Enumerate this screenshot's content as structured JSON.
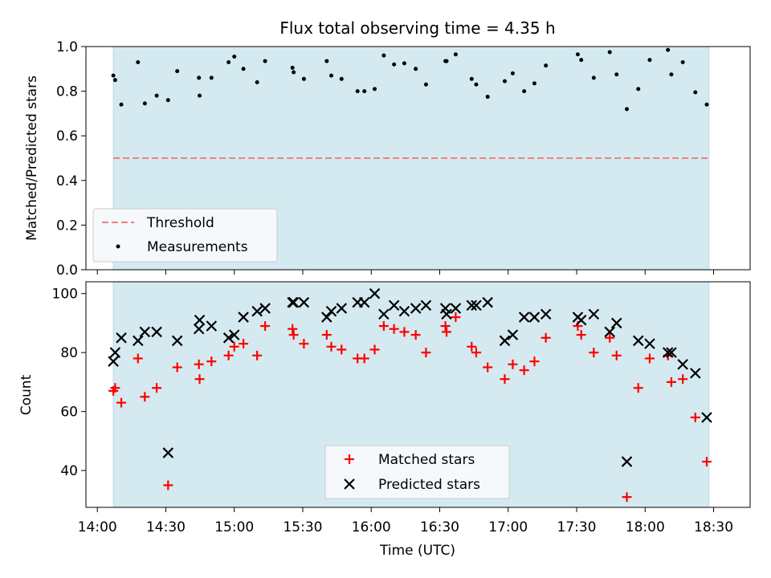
{
  "chart_data": {
    "title": "Flux total observing time = 4.35 h",
    "xlabel": "Time (UTC)",
    "x_tick_labels": [
      "14:00",
      "14:30",
      "15:00",
      "15:30",
      "16:00",
      "16:30",
      "17:00",
      "17:30",
      "18:00",
      "18:30"
    ],
    "x_tick_minutes": [
      840,
      870,
      900,
      930,
      960,
      990,
      1020,
      1050,
      1080,
      1110
    ],
    "xlim_minutes": [
      835,
      1126
    ],
    "observing_window_minutes": [
      847.0,
      1108.0
    ],
    "shade_color": "#d4eaf0",
    "panels": [
      {
        "type": "scatter",
        "ylabel": "Matched/Predicted stars",
        "ylim": [
          0,
          1.0
        ],
        "y_ticks": [
          "0.0",
          "0.2",
          "0.4",
          "0.6",
          "0.8",
          "1.0"
        ],
        "legend_position": "lower-left",
        "threshold": {
          "name": "Threshold",
          "value": 0.5,
          "color": "#f08080"
        },
        "series": [
          {
            "name": "Measurements",
            "color": "#000000",
            "marker": "dot",
            "points": [
              [
                847.0,
                0.87
              ],
              [
                847.8,
                0.85
              ],
              [
                850.5,
                0.74
              ],
              [
                857.8,
                0.93
              ],
              [
                860.8,
                0.745
              ],
              [
                866.0,
                0.78
              ],
              [
                871.0,
                0.76
              ],
              [
                875.0,
                0.89
              ],
              [
                884.5,
                0.86
              ],
              [
                884.8,
                0.78
              ],
              [
                890.0,
                0.86
              ],
              [
                897.5,
                0.93
              ],
              [
                900.0,
                0.955
              ],
              [
                904.0,
                0.9
              ],
              [
                910.0,
                0.84
              ],
              [
                913.5,
                0.935
              ],
              [
                925.5,
                0.905
              ],
              [
                926.0,
                0.885
              ],
              [
                930.5,
                0.855
              ],
              [
                940.5,
                0.935
              ],
              [
                942.5,
                0.87
              ],
              [
                947.0,
                0.855
              ],
              [
                954.0,
                0.8
              ],
              [
                957.0,
                0.8
              ],
              [
                961.5,
                0.81
              ],
              [
                965.5,
                0.96
              ],
              [
                970.0,
                0.92
              ],
              [
                974.5,
                0.925
              ],
              [
                979.5,
                0.9
              ],
              [
                984.0,
                0.83
              ],
              [
                992.5,
                0.935
              ],
              [
                993.0,
                0.935
              ],
              [
                997.0,
                0.965
              ],
              [
                1004.0,
                0.855
              ],
              [
                1006.0,
                0.83
              ],
              [
                1011.0,
                0.775
              ],
              [
                1018.5,
                0.845
              ],
              [
                1022.0,
                0.88
              ],
              [
                1027.0,
                0.8
              ],
              [
                1031.5,
                0.835
              ],
              [
                1036.5,
                0.915
              ],
              [
                1050.5,
                0.965
              ],
              [
                1052.0,
                0.94
              ],
              [
                1057.5,
                0.86
              ],
              [
                1064.5,
                0.975
              ],
              [
                1067.5,
                0.875
              ],
              [
                1072.0,
                0.72
              ],
              [
                1077.0,
                0.81
              ],
              [
                1082.0,
                0.94
              ],
              [
                1090.0,
                0.985
              ],
              [
                1091.5,
                0.875
              ],
              [
                1096.5,
                0.93
              ],
              [
                1102.0,
                0.795
              ],
              [
                1107.0,
                0.74
              ]
            ]
          }
        ]
      },
      {
        "type": "scatter",
        "ylabel": "Count",
        "ylim": [
          27.5,
          104
        ],
        "y_ticks": [
          "40",
          "60",
          "80",
          "100"
        ],
        "y_tick_values": [
          40,
          60,
          80,
          100
        ],
        "legend_position": "lower-center",
        "series": [
          {
            "name": "Matched stars",
            "color": "#ff0000",
            "marker": "plus",
            "points": [
              [
                847.0,
                67
              ],
              [
                847.8,
                68
              ],
              [
                850.5,
                63
              ],
              [
                857.8,
                78
              ],
              [
                860.8,
                65
              ],
              [
                866.0,
                68
              ],
              [
                871.0,
                35
              ],
              [
                875.0,
                75
              ],
              [
                884.5,
                76
              ],
              [
                884.8,
                71
              ],
              [
                890.0,
                77
              ],
              [
                897.5,
                79
              ],
              [
                900.0,
                82
              ],
              [
                904.0,
                83
              ],
              [
                910.0,
                79
              ],
              [
                913.5,
                89
              ],
              [
                925.5,
                88
              ],
              [
                926.0,
                86
              ],
              [
                930.5,
                83
              ],
              [
                940.5,
                86
              ],
              [
                942.5,
                82
              ],
              [
                947.0,
                81
              ],
              [
                954.0,
                78
              ],
              [
                957.0,
                78
              ],
              [
                961.5,
                81
              ],
              [
                965.5,
                89
              ],
              [
                970.0,
                88
              ],
              [
                974.5,
                87
              ],
              [
                979.5,
                86
              ],
              [
                984.0,
                80
              ],
              [
                992.5,
                89
              ],
              [
                993.0,
                87
              ],
              [
                997.0,
                92
              ],
              [
                1004.0,
                82
              ],
              [
                1006.0,
                80
              ],
              [
                1011.0,
                75
              ],
              [
                1018.5,
                71
              ],
              [
                1022.0,
                76
              ],
              [
                1027.0,
                74
              ],
              [
                1031.5,
                77
              ],
              [
                1036.5,
                85
              ],
              [
                1050.5,
                89
              ],
              [
                1052.0,
                86
              ],
              [
                1057.5,
                80
              ],
              [
                1064.5,
                85
              ],
              [
                1067.5,
                79
              ],
              [
                1072.0,
                31
              ],
              [
                1077.0,
                68
              ],
              [
                1082.0,
                78
              ],
              [
                1090.0,
                79
              ],
              [
                1091.5,
                70
              ],
              [
                1096.5,
                71
              ],
              [
                1102.0,
                58
              ],
              [
                1107.0,
                43
              ]
            ]
          },
          {
            "name": "Predicted stars",
            "color": "#000000",
            "marker": "cross",
            "points": [
              [
                847.0,
                77
              ],
              [
                847.8,
                80
              ],
              [
                850.5,
                85
              ],
              [
                857.8,
                84
              ],
              [
                860.8,
                87
              ],
              [
                866.0,
                87
              ],
              [
                871.0,
                46
              ],
              [
                875.0,
                84
              ],
              [
                884.5,
                88
              ],
              [
                884.8,
                91
              ],
              [
                890.0,
                89
              ],
              [
                897.5,
                85
              ],
              [
                900.0,
                86
              ],
              [
                904.0,
                92
              ],
              [
                910.0,
                94
              ],
              [
                913.5,
                95
              ],
              [
                925.5,
                97
              ],
              [
                926.0,
                97
              ],
              [
                930.5,
                97
              ],
              [
                940.5,
                92
              ],
              [
                942.5,
                94
              ],
              [
                947.0,
                95
              ],
              [
                954.0,
                97
              ],
              [
                957.0,
                97
              ],
              [
                961.5,
                100
              ],
              [
                965.5,
                93
              ],
              [
                970.0,
                96
              ],
              [
                974.5,
                94
              ],
              [
                979.5,
                95
              ],
              [
                984.0,
                96
              ],
              [
                992.5,
                95
              ],
              [
                993.0,
                93
              ],
              [
                997.0,
                95
              ],
              [
                1004.0,
                96
              ],
              [
                1006.0,
                96
              ],
              [
                1011.0,
                97
              ],
              [
                1018.5,
                84
              ],
              [
                1022.0,
                86
              ],
              [
                1027.0,
                92
              ],
              [
                1031.5,
                92
              ],
              [
                1036.5,
                93
              ],
              [
                1050.5,
                92
              ],
              [
                1052.0,
                91
              ],
              [
                1057.5,
                93
              ],
              [
                1064.5,
                87
              ],
              [
                1067.5,
                90
              ],
              [
                1072.0,
                43
              ],
              [
                1077.0,
                84
              ],
              [
                1082.0,
                83
              ],
              [
                1090.0,
                80
              ],
              [
                1091.5,
                80
              ],
              [
                1096.5,
                76
              ],
              [
                1102.0,
                73
              ],
              [
                1107.0,
                58
              ]
            ]
          }
        ]
      }
    ]
  }
}
